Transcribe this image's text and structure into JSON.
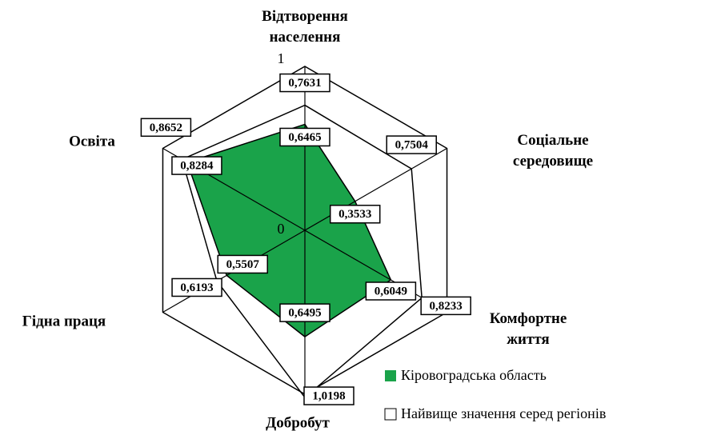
{
  "chart_data": {
    "type": "radar",
    "categories": [
      "Відтворення населення",
      "Соціальне середовище",
      "Комфортне життя",
      "Добробут",
      "Гідна праця",
      "Освіта"
    ],
    "series": [
      {
        "name": "Кіровоградська область",
        "color": "#1aa34a",
        "values": [
          0.6465,
          0.3533,
          0.6049,
          0.6495,
          0.5507,
          0.8284
        ],
        "value_labels": [
          "0,6465",
          "0,3533",
          "0,6049",
          "0,6495",
          "0,5507",
          "0,8284"
        ]
      },
      {
        "name": "Найвище значення серед регіонів",
        "color": "#ffffff",
        "values": [
          0.7631,
          0.7504,
          0.8233,
          1.0198,
          0.6193,
          0.8652
        ],
        "value_labels": [
          "0,7631",
          "0,7504",
          "0,8233",
          "1,0198",
          "0,6193",
          "0,8652"
        ]
      }
    ],
    "rlim": [
      0,
      1
    ],
    "rticks": [
      0,
      1
    ]
  }
}
